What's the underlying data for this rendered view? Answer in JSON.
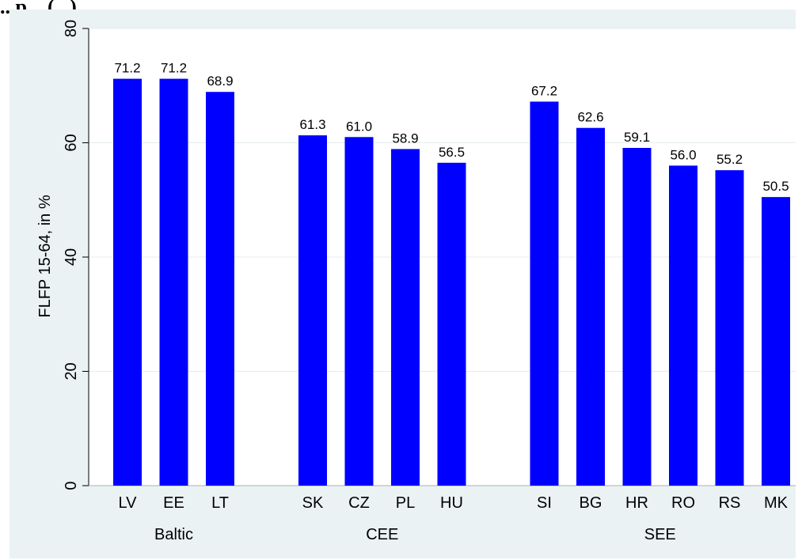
{
  "header": {
    "text": "...p... (...) ..."
  },
  "chart_data": {
    "type": "bar",
    "ylabel": "FLFP 15-64, in %",
    "ylim": [
      0,
      80
    ],
    "yticks": [
      0,
      20,
      40,
      60,
      80
    ],
    "grid": true,
    "bar_color": "#0000ff",
    "groups": [
      {
        "name": "Baltic",
        "categories": [
          "LV",
          "EE",
          "LT"
        ],
        "values": [
          71.2,
          71.2,
          68.9
        ]
      },
      {
        "name": "CEE",
        "categories": [
          "SK",
          "CZ",
          "PL",
          "HU"
        ],
        "values": [
          61.3,
          61.0,
          58.9,
          56.5
        ]
      },
      {
        "name": "SEE",
        "categories": [
          "SI",
          "BG",
          "HR",
          "RO",
          "RS",
          "MK"
        ],
        "values": [
          67.2,
          62.6,
          59.1,
          56.0,
          55.2,
          50.5
        ]
      }
    ]
  }
}
